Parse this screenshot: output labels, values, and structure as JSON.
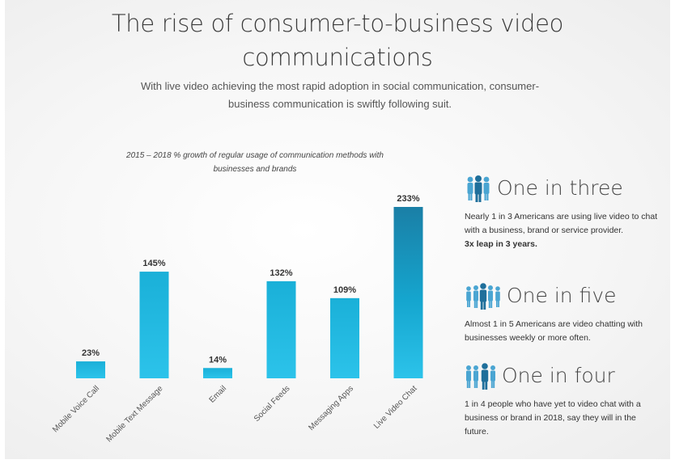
{
  "title_line1": "The rise of consumer-to-business video",
  "title_line2": "communications",
  "subtitle": "With live video achieving the most rapid adoption in social communication, consumer-business communication is swiftly following suit.",
  "chart_data": {
    "type": "bar",
    "title": "2015 – 2018 % growth of regular usage of communication methods with businesses and brands",
    "categories": [
      "Mobile Voice Call",
      "Mobile Text Message",
      "Email",
      "Social Feeds",
      "Messaging Apps",
      "Live Video Chat"
    ],
    "values": [
      23,
      145,
      14,
      132,
      109,
      233
    ],
    "data_labels": [
      "23%",
      "145%",
      "14%",
      "132%",
      "109%",
      "233%"
    ],
    "ylim": [
      0,
      233
    ],
    "grid": false,
    "bar_color_top": "#1ab0d8",
    "bar_color_dark_top": "#1a7fa6"
  },
  "stats": [
    {
      "heading": "One in three",
      "icon": "people-group-icon",
      "body": "Nearly 1 in 3 Americans are using live video to chat with a business, brand or service provider.",
      "emphasis": "3x leap in 3 years."
    },
    {
      "heading": "One in five",
      "icon": "people-group-icon",
      "body": "Almost 1 in 5 Americans are video chatting with businesses weekly or more often.",
      "emphasis": ""
    },
    {
      "heading": "One in four",
      "icon": "people-group-icon",
      "body": "1 in 4 people who have yet to video chat with a business or brand in 2018, say they will in the future.",
      "emphasis": ""
    }
  ],
  "colors": {
    "accent": "#1ab0d8",
    "icon_blue": "#3aa8d8",
    "text": "#333333"
  }
}
